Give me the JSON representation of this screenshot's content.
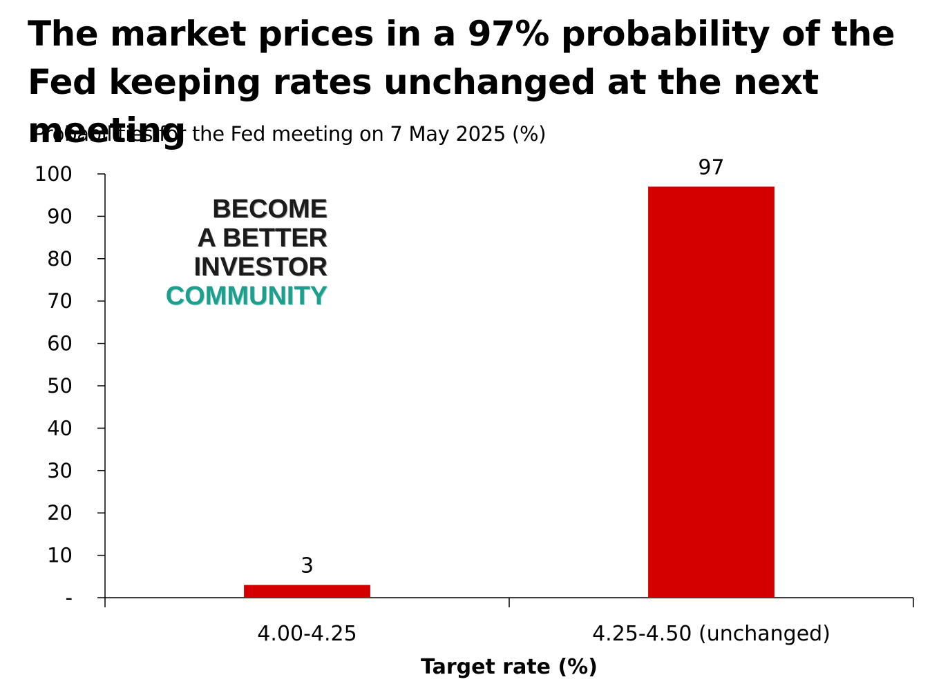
{
  "title": "The market prices in a 97% probability of the Fed keeping rates unchanged at the next meeting",
  "subtitle": "Probabilities for the Fed meeting on 7 May 2025 (%)",
  "watermark": {
    "line1": "BECOME",
    "line2": "A BETTER",
    "line3": "INVESTOR",
    "line4": "COMMUNITY"
  },
  "colors": {
    "bar": "#d40000",
    "axis": "#000000",
    "watermark_accent": "#1e9e8c"
  },
  "chart_data": {
    "type": "bar",
    "title": "Probabilities for the Fed meeting on 7 May 2025 (%)",
    "xlabel": "Target rate (%)",
    "ylabel": "",
    "categories": [
      "4.00-4.25",
      "4.25-4.50 (unchanged)"
    ],
    "values": [
      3,
      97
    ],
    "data_labels": [
      "3",
      "97"
    ],
    "ylim": [
      0,
      100
    ],
    "yticks": [
      0,
      10,
      20,
      30,
      40,
      50,
      60,
      70,
      80,
      90,
      100
    ],
    "ytick_labels": [
      "-",
      "10",
      "20",
      "30",
      "40",
      "50",
      "60",
      "70",
      "80",
      "90",
      "100"
    ],
    "grid": false,
    "legend": "none"
  }
}
